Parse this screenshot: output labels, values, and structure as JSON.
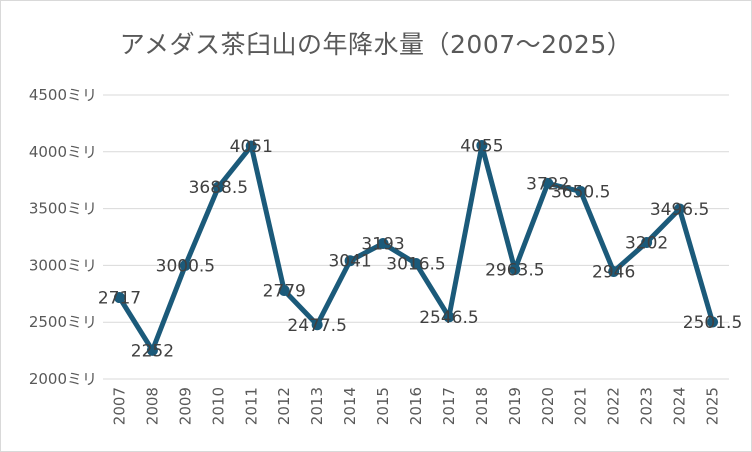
{
  "chart_data": {
    "type": "line",
    "title": "アメダス茶臼山の年降水量（2007～2025）",
    "xlabel": "",
    "ylabel": "",
    "categories": [
      "2007",
      "2008",
      "2009",
      "2010",
      "2011",
      "2012",
      "2013",
      "2014",
      "2015",
      "2016",
      "2017",
      "2018",
      "2019",
      "2020",
      "2021",
      "2022",
      "2023",
      "2024",
      "2025"
    ],
    "series": [
      {
        "values": [
          2717,
          2252,
          3000.5,
          3688.5,
          4051,
          2779,
          2477.5,
          3041,
          3193,
          3016.5,
          2546.5,
          4055,
          2963.5,
          3722,
          3650.5,
          2946,
          3202,
          3496.5,
          2501.5
        ],
        "labels": [
          "2717",
          "2252",
          "3000.5",
          "3688.5",
          "4051",
          "2779",
          "2477.5",
          "3041",
          "3193",
          "3016.5",
          "2546.5",
          "4055",
          "2963.5",
          "3722",
          "3650.5",
          "2946",
          "3202",
          "3496.5",
          "2501.5"
        ],
        "color": "#1b5a7a"
      }
    ],
    "yticks": [
      2000,
      2500,
      3000,
      3500,
      4000,
      4500
    ],
    "ytick_labels": [
      "2000ミリ",
      "2500ミリ",
      "3000ミリ",
      "3500ミリ",
      "4000ミリ",
      "4500ミリ"
    ],
    "ylim": [
      2000,
      4500
    ],
    "grid": true,
    "legend": "none"
  }
}
